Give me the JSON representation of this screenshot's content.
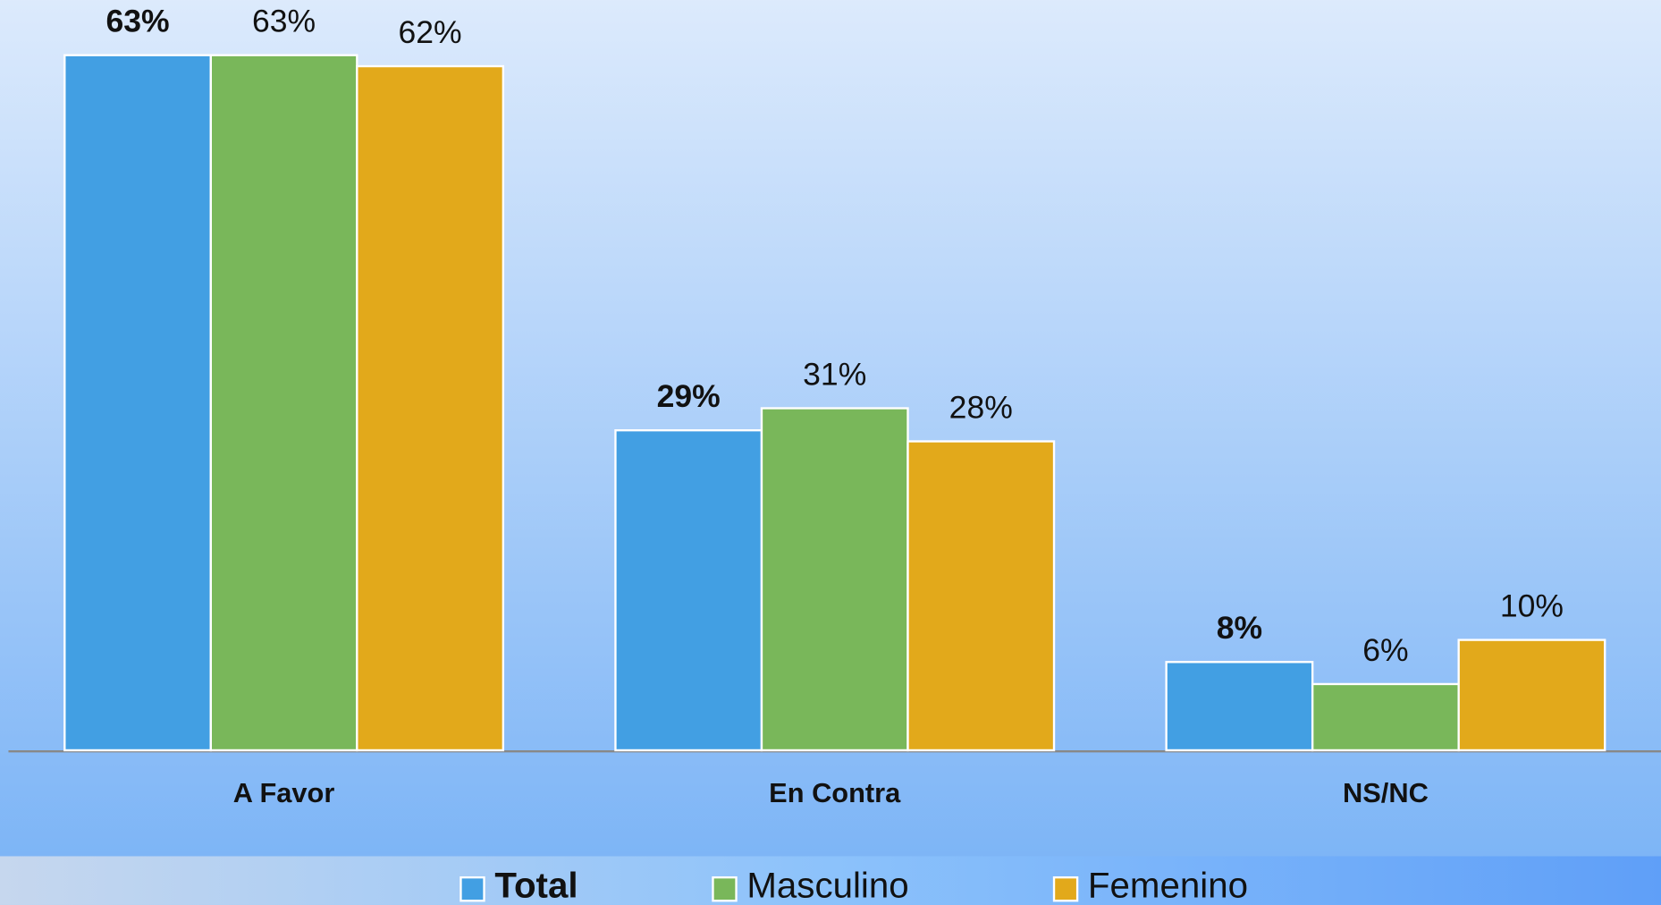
{
  "chart_data": {
    "type": "bar",
    "categories": [
      "A Favor",
      "En Contra",
      "NS/NC"
    ],
    "series": [
      {
        "name": "Total",
        "color": "#429fe3",
        "values": [
          63,
          29,
          8
        ],
        "value_labels": [
          "63%",
          "29%",
          "8%"
        ]
      },
      {
        "name": "Masculino",
        "color": "#79b75a",
        "values": [
          63,
          31,
          6
        ],
        "value_labels": [
          "63%",
          "31%",
          "6%"
        ]
      },
      {
        "name": "Femenino",
        "color": "#e2a91b",
        "values": [
          62,
          28,
          10
        ],
        "value_labels": [
          "62%",
          "28%",
          "10%"
        ]
      }
    ],
    "ylim": [
      0,
      68
    ]
  }
}
